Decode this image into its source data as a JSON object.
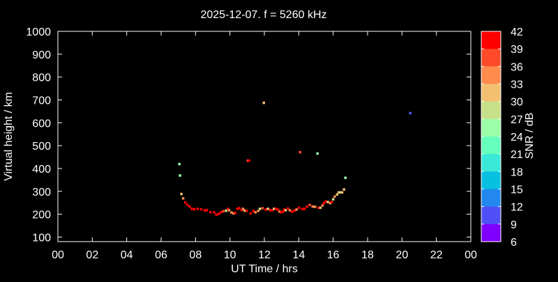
{
  "chart_data": {
    "type": "scatter",
    "title": "2025-12-07. f = 5260 kHz",
    "xlabel": "UT Time / hrs",
    "ylabel": "Virtual height / km",
    "xlim": [
      0,
      24
    ],
    "ylim": [
      80,
      1000
    ],
    "xticks": [
      "00",
      "02",
      "04",
      "06",
      "08",
      "10",
      "12",
      "14",
      "16",
      "18",
      "20",
      "22",
      "00"
    ],
    "yticks": [
      100,
      200,
      300,
      400,
      500,
      600,
      700,
      800,
      900,
      1000
    ],
    "grid": false,
    "colorbar": {
      "label": "SNR / dB",
      "ticks": [
        42,
        39,
        36,
        33,
        30,
        27,
        24,
        21,
        18,
        15,
        12,
        9,
        6
      ],
      "range": [
        6,
        42
      ],
      "colors": [
        "#ff0000",
        "#ff4a2a",
        "#ff8c4d",
        "#f2c070",
        "#c8e08a",
        "#9affa8",
        "#66ffbb",
        "#3ae8d8",
        "#08c0e0",
        "#2288f0",
        "#5050f8",
        "#8000ff"
      ]
    },
    "points": [
      [
        7.17,
        289,
        31
      ],
      [
        7.27,
        270,
        34
      ],
      [
        7.39,
        252,
        40
      ],
      [
        7.51,
        242,
        40
      ],
      [
        7.65,
        234,
        40
      ],
      [
        7.78,
        224,
        40
      ],
      [
        7.92,
        222,
        40
      ],
      [
        8.12,
        224,
        40
      ],
      [
        8.32,
        222,
        40
      ],
      [
        8.52,
        217,
        40
      ],
      [
        8.65,
        219,
        40
      ],
      [
        8.86,
        209,
        40
      ],
      [
        9.07,
        209,
        40
      ],
      [
        9.2,
        199,
        40
      ],
      [
        9.34,
        202,
        40
      ],
      [
        9.47,
        209,
        40
      ],
      [
        9.61,
        214,
        37
      ],
      [
        9.77,
        216,
        28
      ],
      [
        9.87,
        224,
        40
      ],
      [
        9.94,
        218,
        34
      ],
      [
        10.08,
        208,
        34
      ],
      [
        10.21,
        204,
        34
      ],
      [
        10.3,
        206,
        40
      ],
      [
        10.42,
        224,
        40
      ],
      [
        10.53,
        227,
        40
      ],
      [
        10.67,
        219,
        40
      ],
      [
        10.75,
        224,
        34
      ],
      [
        10.85,
        216,
        31
      ],
      [
        10.96,
        215,
        40
      ],
      [
        11.2,
        204,
        40
      ],
      [
        11.36,
        215,
        40
      ],
      [
        11.47,
        209,
        34
      ],
      [
        11.63,
        215,
        34
      ],
      [
        11.73,
        224,
        28
      ],
      [
        11.88,
        227,
        37
      ],
      [
        12.07,
        221,
        40
      ],
      [
        12.2,
        224,
        31
      ],
      [
        12.34,
        218,
        40
      ],
      [
        12.44,
        218,
        40
      ],
      [
        12.55,
        224,
        31
      ],
      [
        12.67,
        224,
        40
      ],
      [
        12.78,
        221,
        40
      ],
      [
        12.88,
        212,
        34
      ],
      [
        12.96,
        209,
        40
      ],
      [
        13.07,
        212,
        40
      ],
      [
        13.15,
        221,
        40
      ],
      [
        13.23,
        218,
        31
      ],
      [
        13.36,
        226,
        40
      ],
      [
        13.47,
        218,
        34
      ],
      [
        13.59,
        212,
        40
      ],
      [
        13.73,
        216,
        40
      ],
      [
        13.86,
        221,
        34
      ],
      [
        14.0,
        229,
        40
      ],
      [
        14.2,
        224,
        40
      ],
      [
        14.33,
        224,
        40
      ],
      [
        14.47,
        234,
        40
      ],
      [
        14.63,
        241,
        37
      ],
      [
        14.8,
        234,
        34
      ],
      [
        14.94,
        233,
        34
      ],
      [
        15.14,
        229,
        40
      ],
      [
        15.25,
        229,
        31
      ],
      [
        15.37,
        239,
        34
      ],
      [
        15.45,
        249,
        40
      ],
      [
        15.55,
        256,
        40
      ],
      [
        15.68,
        254,
        31
      ],
      [
        15.82,
        249,
        34
      ],
      [
        15.9,
        254,
        40
      ],
      [
        15.99,
        266,
        28
      ],
      [
        16.08,
        278,
        34
      ],
      [
        16.22,
        287,
        31
      ],
      [
        16.31,
        296,
        31
      ],
      [
        16.42,
        296,
        28
      ],
      [
        16.51,
        296,
        31
      ],
      [
        16.62,
        309,
        31
      ],
      [
        7.05,
        420,
        25
      ],
      [
        7.09,
        370,
        27
      ],
      [
        11.03,
        435,
        37
      ],
      [
        11.1,
        435,
        40
      ],
      [
        11.96,
        688,
        31
      ],
      [
        14.07,
        472,
        38
      ],
      [
        15.08,
        466,
        27
      ],
      [
        16.7,
        360,
        25
      ],
      [
        20.47,
        643,
        11
      ]
    ]
  }
}
